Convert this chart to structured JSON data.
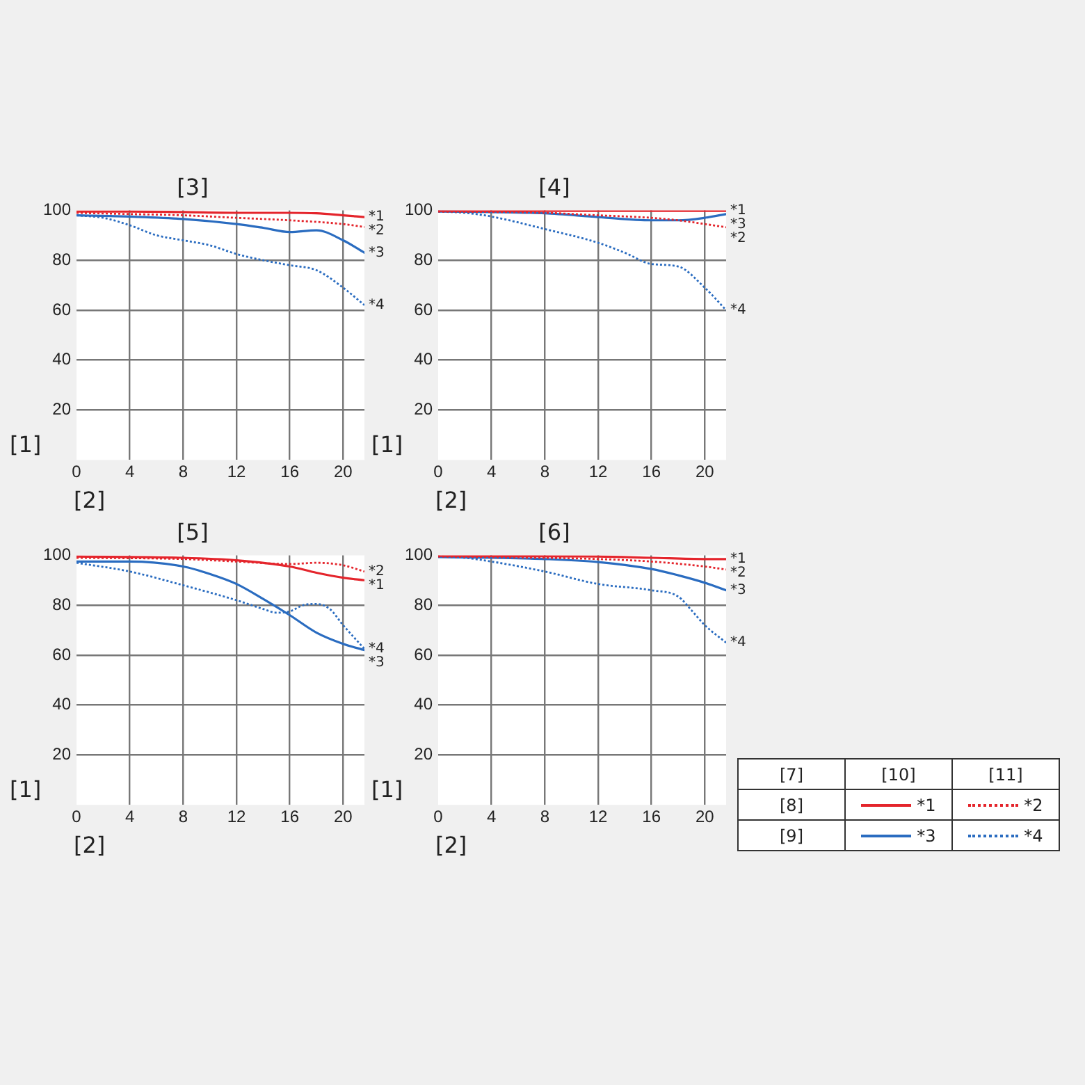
{
  "chart_data": [
    {
      "type": "line",
      "title": "[3]",
      "xlabel": "[2]",
      "ylabel": "[1]",
      "xlim": [
        0,
        21.6
      ],
      "xticks": [
        0,
        4,
        8,
        12,
        16,
        20
      ],
      "ylim": [
        0,
        100
      ],
      "yticks": [
        20,
        40,
        60,
        80,
        100
      ],
      "grid": true,
      "legend": false,
      "marker": "none",
      "series": [
        {
          "name": "*1",
          "color": "#e4252c",
          "line_style": "solid",
          "x": [
            0,
            4,
            8,
            12,
            16,
            18,
            20,
            21.6
          ],
          "values": [
            99.5,
            99.5,
            99.3,
            99,
            99,
            98.8,
            98,
            97.3
          ]
        },
        {
          "name": "*2",
          "color": "#e4252c",
          "line_style": "dotted",
          "x": [
            0,
            4,
            8,
            12,
            16,
            20,
            21.6
          ],
          "values": [
            99,
            98.5,
            98,
            97,
            96,
            94.5,
            93.3
          ]
        },
        {
          "name": "*3",
          "color": "#2a6cc0",
          "line_style": "solid",
          "x": [
            0,
            4,
            8,
            12,
            14,
            16,
            18,
            20,
            21.6
          ],
          "values": [
            98,
            97.5,
            96.5,
            94.5,
            93,
            91.3,
            92,
            88,
            83
          ]
        },
        {
          "name": "*4",
          "color": "#2a6cc0",
          "line_style": "dotted",
          "x": [
            0,
            2,
            4,
            6,
            8,
            10,
            12,
            14,
            16,
            18,
            20,
            21.6
          ],
          "values": [
            98,
            97,
            94,
            90,
            88,
            86,
            82.5,
            80,
            78,
            76,
            69,
            62
          ]
        }
      ]
    },
    {
      "type": "line",
      "title": "[4]",
      "xlabel": "[2]",
      "ylabel": "[1]",
      "xlim": [
        0,
        21.6
      ],
      "xticks": [
        0,
        4,
        8,
        12,
        16,
        20
      ],
      "ylim": [
        0,
        100
      ],
      "yticks": [
        20,
        40,
        60,
        80,
        100
      ],
      "grid": true,
      "legend": false,
      "marker": "none",
      "series": [
        {
          "name": "*1",
          "color": "#e4252c",
          "line_style": "solid",
          "x": [
            0,
            8,
            16,
            21.6
          ],
          "values": [
            99.8,
            99.8,
            99.8,
            99.8
          ]
        },
        {
          "name": "*2",
          "color": "#e4252c",
          "line_style": "dotted",
          "x": [
            0,
            8,
            12,
            16,
            18,
            20,
            21.6
          ],
          "values": [
            99.5,
            99,
            98,
            97,
            96,
            94.5,
            93.2
          ]
        },
        {
          "name": "*3",
          "color": "#2a6cc0",
          "line_style": "solid",
          "x": [
            0,
            4,
            8,
            12,
            16,
            18,
            20,
            21.6
          ],
          "values": [
            99.5,
            99.3,
            98.8,
            97.3,
            96,
            96,
            97,
            98.5
          ]
        },
        {
          "name": "*4",
          "color": "#2a6cc0",
          "line_style": "dotted",
          "x": [
            0,
            2,
            4,
            8,
            12,
            14,
            16,
            18,
            20,
            21.6
          ],
          "values": [
            99.5,
            99,
            97.5,
            92.5,
            87,
            83,
            78.5,
            77.5,
            69,
            60
          ]
        }
      ]
    },
    {
      "type": "line",
      "title": "[5]",
      "xlabel": "[2]",
      "ylabel": "[1]",
      "xlim": [
        0,
        21.6
      ],
      "xticks": [
        0,
        4,
        8,
        12,
        16,
        20
      ],
      "ylim": [
        0,
        100
      ],
      "yticks": [
        20,
        40,
        60,
        80,
        100
      ],
      "grid": true,
      "legend": false,
      "marker": "none",
      "series": [
        {
          "name": "*1",
          "color": "#e4252c",
          "line_style": "solid",
          "x": [
            0,
            8,
            12,
            16,
            18,
            20,
            21.6
          ],
          "values": [
            99.5,
            99,
            98,
            95.5,
            93,
            91,
            90
          ]
        },
        {
          "name": "*2",
          "color": "#e4252c",
          "line_style": "dotted",
          "x": [
            0,
            8,
            12,
            16,
            18,
            20,
            21.6
          ],
          "values": [
            99,
            98.5,
            97.5,
            96.5,
            97,
            96,
            93.5
          ]
        },
        {
          "name": "*3",
          "color": "#2a6cc0",
          "line_style": "solid",
          "x": [
            0,
            4,
            8,
            10,
            12,
            14,
            16,
            18,
            20,
            21.6
          ],
          "values": [
            97.5,
            97.5,
            95.5,
            92.5,
            88.5,
            82.5,
            76,
            69,
            64.5,
            62
          ]
        },
        {
          "name": "*4",
          "color": "#2a6cc0",
          "line_style": "dotted",
          "x": [
            0,
            4,
            8,
            12,
            14,
            15,
            16,
            17,
            18,
            19,
            20,
            21.6
          ],
          "values": [
            97,
            93.5,
            88,
            82,
            78.5,
            77,
            77.5,
            80,
            80.5,
            78.5,
            72,
            62.5
          ]
        }
      ]
    },
    {
      "type": "line",
      "title": "[6]",
      "xlabel": "[2]",
      "ylabel": "[1]",
      "xlim": [
        0,
        21.6
      ],
      "xticks": [
        0,
        4,
        8,
        12,
        16,
        20
      ],
      "ylim": [
        0,
        100
      ],
      "yticks": [
        20,
        40,
        60,
        80,
        100
      ],
      "grid": true,
      "legend": false,
      "marker": "none",
      "series": [
        {
          "name": "*1",
          "color": "#e4252c",
          "line_style": "solid",
          "x": [
            0,
            12,
            16,
            20,
            21.6
          ],
          "values": [
            99.8,
            99.5,
            99,
            98.5,
            98.5
          ]
        },
        {
          "name": "*2",
          "color": "#e4252c",
          "line_style": "dotted",
          "x": [
            0,
            8,
            12,
            16,
            20,
            21.6
          ],
          "values": [
            99.5,
            99,
            98.5,
            97.5,
            95.5,
            94.3
          ]
        },
        {
          "name": "*3",
          "color": "#2a6cc0",
          "line_style": "solid",
          "x": [
            0,
            4,
            8,
            12,
            16,
            18,
            20,
            21.6
          ],
          "values": [
            99.3,
            99,
            98.5,
            97.3,
            94.5,
            92,
            89,
            86
          ]
        },
        {
          "name": "*4",
          "color": "#2a6cc0",
          "line_style": "dotted",
          "x": [
            0,
            2,
            4,
            8,
            12,
            16,
            18,
            19,
            20,
            21.6
          ],
          "values": [
            99.5,
            99,
            97.5,
            93.5,
            88.5,
            86,
            83.5,
            78,
            72,
            65
          ]
        }
      ]
    },
    {
      "type": "other",
      "annotations": [
        "[7]",
        "[10]",
        "[11]",
        "[8]",
        "[9]"
      ],
      "series": [
        {
          "name": "*1",
          "color": "#e4252c",
          "line_style": "solid"
        },
        {
          "name": "*2",
          "color": "#e4252c",
          "line_style": "dotted"
        },
        {
          "name": "*3",
          "color": "#2a6cc0",
          "line_style": "solid"
        },
        {
          "name": "*4",
          "color": "#2a6cc0",
          "line_style": "dotted"
        }
      ]
    }
  ]
}
